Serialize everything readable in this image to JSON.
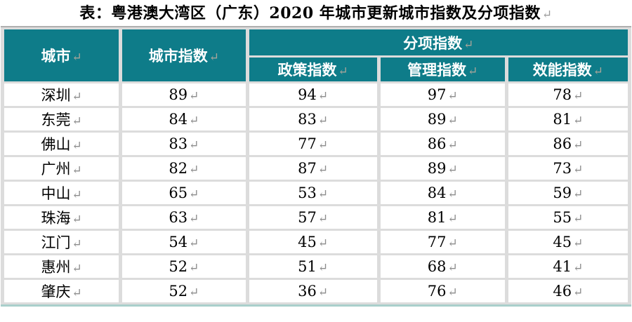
{
  "title": "表：粤港澳大湾区（广东）2020 年城市更新城市指数及分项指数",
  "return_mark": "↵",
  "colors": {
    "header_teal": "#0e7c89",
    "grid_gray": "#dcdcdc",
    "table_top_border": "#b0b0b0",
    "table_bottom_border": "#a9cfcb",
    "body_mark_gray": "#8c8c8c",
    "header_mark_gray": "#a9a59a"
  },
  "table": {
    "header": {
      "city": "城市",
      "city_index": "城市指数",
      "sub_group": "分项指数",
      "policy": "政策指数",
      "management": "管理指数",
      "efficiency": "效能指数"
    },
    "rows": [
      {
        "city": "深圳",
        "city_index": "89",
        "policy": "94",
        "management": "97",
        "efficiency": "78"
      },
      {
        "city": "东莞",
        "city_index": "84",
        "policy": "83",
        "management": "89",
        "efficiency": "81"
      },
      {
        "city": "佛山",
        "city_index": "83",
        "policy": "77",
        "management": "86",
        "efficiency": "86"
      },
      {
        "city": "广州",
        "city_index": "82",
        "policy": "87",
        "management": "89",
        "efficiency": "73"
      },
      {
        "city": "中山",
        "city_index": "65",
        "policy": "53",
        "management": "84",
        "efficiency": "59"
      },
      {
        "city": "珠海",
        "city_index": "63",
        "policy": "57",
        "management": "81",
        "efficiency": "55"
      },
      {
        "city": "江门",
        "city_index": "54",
        "policy": "45",
        "management": "77",
        "efficiency": "45"
      },
      {
        "city": "惠州",
        "city_index": "52",
        "policy": "51",
        "management": "68",
        "efficiency": "41"
      },
      {
        "city": "肇庆",
        "city_index": "52",
        "policy": "36",
        "management": "76",
        "efficiency": "46"
      }
    ]
  },
  "chart_data": {
    "type": "table",
    "title": "粤港澳大湾区（广东）2020 年城市更新城市指数及分项指数",
    "categories": [
      "深圳",
      "东莞",
      "佛山",
      "广州",
      "中山",
      "珠海",
      "江门",
      "惠州",
      "肇庆"
    ],
    "series": [
      {
        "name": "城市指数",
        "values": [
          89,
          84,
          83,
          82,
          65,
          63,
          54,
          52,
          52
        ]
      },
      {
        "name": "政策指数",
        "values": [
          94,
          83,
          77,
          87,
          53,
          57,
          45,
          51,
          36
        ]
      },
      {
        "name": "管理指数",
        "values": [
          97,
          89,
          86,
          89,
          84,
          81,
          77,
          68,
          76
        ]
      },
      {
        "name": "效能指数",
        "values": [
          78,
          81,
          86,
          73,
          59,
          55,
          45,
          41,
          46
        ]
      }
    ]
  }
}
